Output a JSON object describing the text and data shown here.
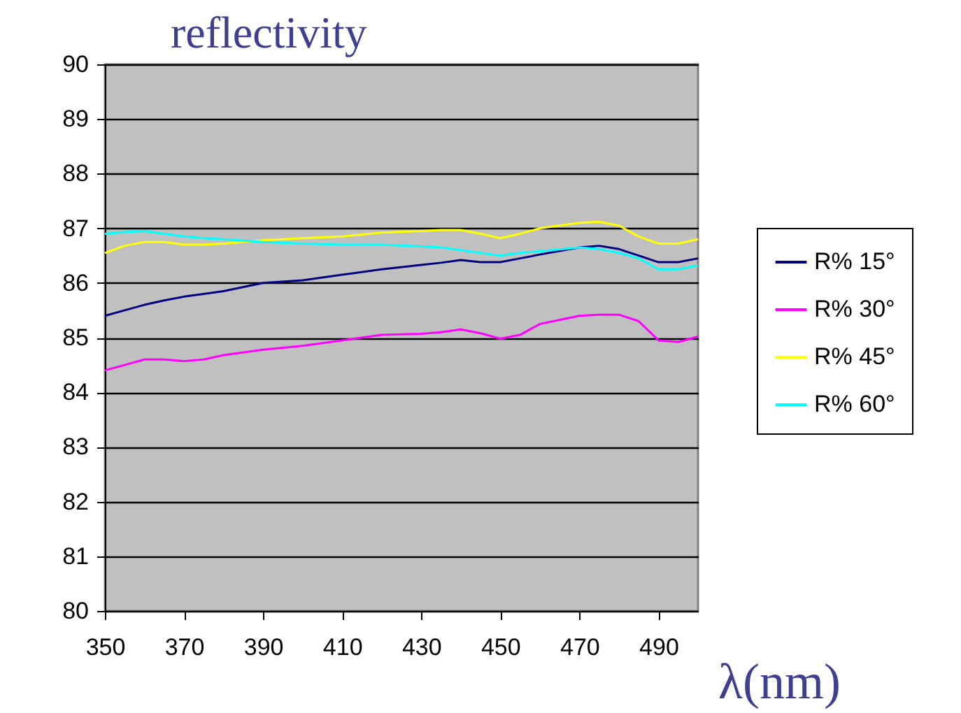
{
  "chart_data": {
    "type": "line",
    "title": "reflectivity",
    "xlabel": "λ(nm)",
    "x": [
      350,
      355,
      360,
      365,
      370,
      375,
      380,
      390,
      400,
      410,
      420,
      430,
      435,
      440,
      445,
      450,
      455,
      460,
      470,
      475,
      480,
      485,
      490,
      495,
      500
    ],
    "series": [
      {
        "name": "R% 15°",
        "color": "#000080",
        "values": [
          85.4,
          85.5,
          85.6,
          85.68,
          85.75,
          85.8,
          85.85,
          86.0,
          86.05,
          86.15,
          86.25,
          86.33,
          86.37,
          86.42,
          86.38,
          86.38,
          86.45,
          86.52,
          86.65,
          86.68,
          86.62,
          86.5,
          86.38,
          86.38,
          86.45
        ]
      },
      {
        "name": "R% 30°",
        "color": "#ff00ff",
        "values": [
          84.4,
          84.5,
          84.6,
          84.6,
          84.57,
          84.6,
          84.68,
          84.78,
          84.85,
          84.95,
          85.05,
          85.07,
          85.1,
          85.15,
          85.08,
          84.98,
          85.05,
          85.25,
          85.4,
          85.42,
          85.42,
          85.3,
          84.95,
          84.92,
          85.02
        ]
      },
      {
        "name": "R% 45°",
        "color": "#ffff00",
        "values": [
          86.55,
          86.68,
          86.75,
          86.75,
          86.7,
          86.7,
          86.72,
          86.78,
          86.82,
          86.85,
          86.92,
          86.95,
          86.97,
          86.97,
          86.9,
          86.82,
          86.9,
          87.0,
          87.1,
          87.12,
          87.05,
          86.85,
          86.72,
          86.72,
          86.8
        ]
      },
      {
        "name": "R% 60°",
        "color": "#00ffff",
        "values": [
          86.9,
          86.93,
          86.95,
          86.9,
          86.85,
          86.82,
          86.8,
          86.75,
          86.72,
          86.7,
          86.7,
          86.67,
          86.65,
          86.6,
          86.55,
          86.5,
          86.55,
          86.58,
          86.65,
          86.62,
          86.55,
          86.45,
          86.25,
          86.25,
          86.32
        ]
      }
    ],
    "xlim": [
      350,
      500
    ],
    "xticks": [
      350,
      370,
      390,
      410,
      430,
      450,
      470,
      490
    ],
    "ylim": [
      80,
      90
    ],
    "yticks": [
      80,
      81,
      82,
      83,
      84,
      85,
      86,
      87,
      88,
      89,
      90
    ],
    "grid": "y",
    "legend": "right",
    "marker": "none",
    "line_style": "solid"
  }
}
